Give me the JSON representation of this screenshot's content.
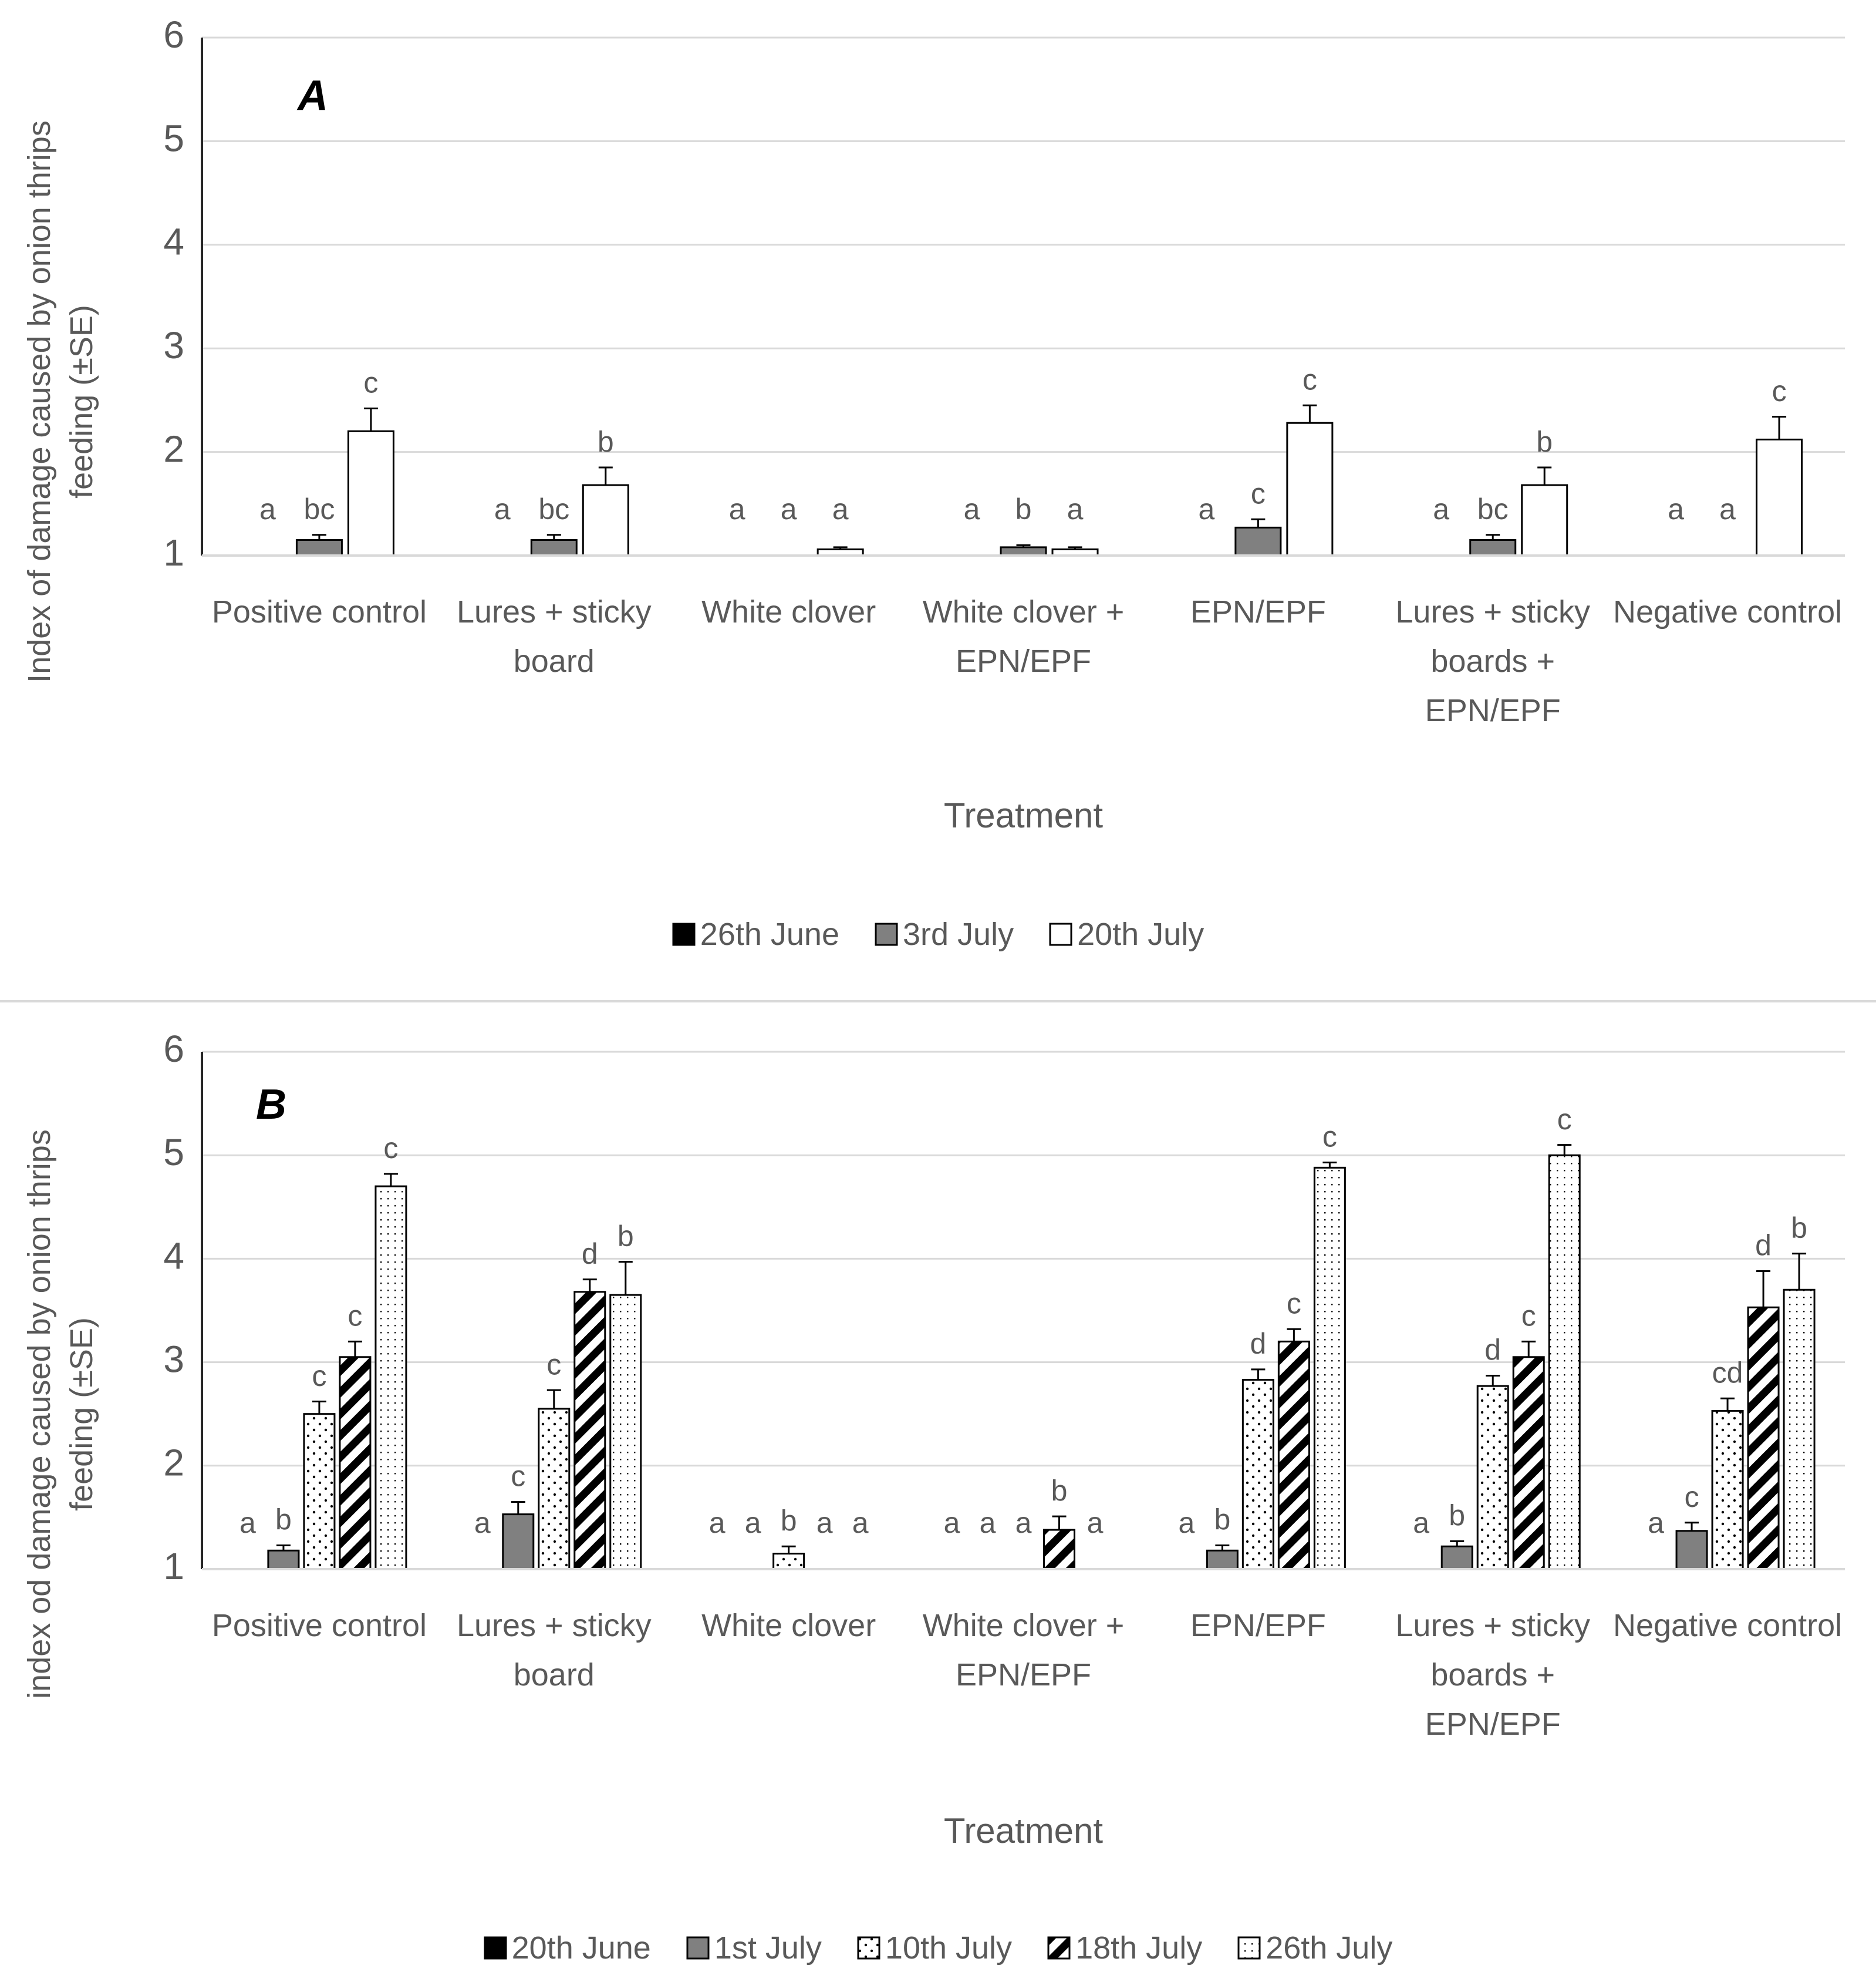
{
  "chart_data": [
    {
      "type": "bar",
      "title": "A",
      "y_label": "Index of damage caused by onion thrips feeding (±SE)",
      "x_label": "Treatment",
      "categories": [
        "Positive control",
        "Lures + sticky board",
        "White clover",
        "White clover + EPN/EPF",
        "EPN/EPF",
        "Lures + sticky boards + EPN/EPF",
        "Negative control"
      ],
      "ylim": [
        1,
        6
      ],
      "yticks": [
        1,
        2,
        3,
        4,
        5,
        6
      ],
      "grid": true,
      "legend": "bottom",
      "series": [
        {
          "name": "26th June",
          "color": "#000000",
          "values": [
            1,
            1,
            1,
            1,
            1,
            1,
            1
          ],
          "errors": [
            0,
            0,
            0,
            0,
            0,
            0,
            0
          ],
          "letters": [
            "a",
            "a",
            "a",
            "a",
            "a",
            "a",
            "a"
          ]
        },
        {
          "name": "3rd July",
          "color": "#808080",
          "values": [
            1.15,
            1.15,
            1,
            1.08,
            1.27,
            1.15,
            1
          ],
          "errors": [
            0.05,
            0.05,
            0,
            0.02,
            0.08,
            0.05,
            0
          ],
          "letters": [
            "bc",
            "bc",
            "a",
            "b",
            "c",
            "bc",
            "a"
          ]
        },
        {
          "name": "20th July",
          "color": "#ffffff",
          "values": [
            2.2,
            1.68,
            1.06,
            1.06,
            2.28,
            1.68,
            2.12
          ],
          "errors": [
            0.22,
            0.17,
            0.02,
            0.02,
            0.17,
            0.17,
            0.22
          ],
          "letters": [
            "c",
            "b",
            "a",
            "a",
            "c",
            "b",
            "c"
          ]
        }
      ]
    },
    {
      "type": "bar",
      "title": "B",
      "y_label": "index od damage caused by onion thrips feeding (±SE)",
      "x_label": "Treatment",
      "categories": [
        "Positive control",
        "Lures + sticky board",
        "White clover",
        "White clover + EPN/EPF",
        "EPN/EPF",
        "Lures + sticky boards + EPN/EPF",
        "Negative control"
      ],
      "ylim": [
        1,
        6
      ],
      "yticks": [
        1,
        2,
        3,
        4,
        5,
        6
      ],
      "grid": true,
      "legend": "bottom",
      "series": [
        {
          "name": "20th June",
          "color": "#000000",
          "values": [
            1,
            1,
            1,
            1,
            1,
            1,
            1
          ],
          "errors": [
            0,
            0,
            0,
            0,
            0,
            0,
            0
          ],
          "letters": [
            "a",
            "a",
            "a",
            "a",
            "a",
            "a",
            "a"
          ]
        },
        {
          "name": "1st July",
          "color": "#808080",
          "values": [
            1.18,
            1.53,
            1,
            1,
            1.18,
            1.22,
            1.37
          ],
          "errors": [
            0.05,
            0.12,
            0,
            0,
            0.05,
            0.05,
            0.08
          ],
          "letters": [
            "b",
            "c",
            "a",
            "a",
            "b",
            "b",
            "c"
          ]
        },
        {
          "name": "10th July",
          "color": "#ffffff",
          "pattern": "dots",
          "values": [
            2.5,
            2.55,
            1.15,
            1,
            2.83,
            2.77,
            2.53
          ],
          "errors": [
            0.12,
            0.18,
            0.07,
            0,
            0.1,
            0.1,
            0.12
          ],
          "letters": [
            "c",
            "c",
            "b",
            "a",
            "d",
            "d",
            "cd"
          ]
        },
        {
          "name": "18th July",
          "color": "#ffffff",
          "pattern": "stripes",
          "values": [
            3.05,
            3.68,
            1,
            1.38,
            3.2,
            3.05,
            3.53
          ],
          "errors": [
            0.15,
            0.12,
            0,
            0.13,
            0.12,
            0.15,
            0.35
          ],
          "letters": [
            "c",
            "d",
            "a",
            "b",
            "c",
            "c",
            "d"
          ]
        },
        {
          "name": "26th July",
          "color": "#ffffff",
          "pattern": "dotgrid",
          "values": [
            4.7,
            3.65,
            1,
            1,
            4.88,
            5,
            3.7
          ],
          "errors": [
            0.12,
            0.32,
            0,
            0,
            0.05,
            0.1,
            0.35
          ],
          "letters": [
            "c",
            "b",
            "a",
            "a",
            "c",
            "c",
            "b"
          ]
        }
      ]
    }
  ]
}
